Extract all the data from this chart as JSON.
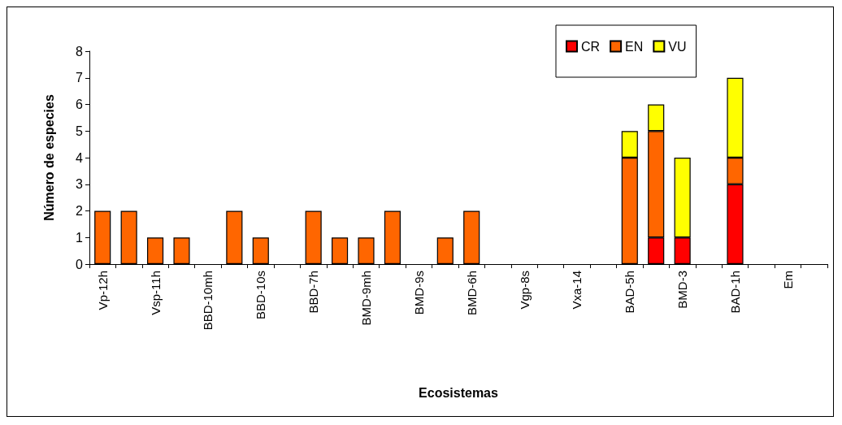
{
  "chart_data": {
    "type": "bar",
    "stacked": true,
    "xlabel": "Ecosistemas",
    "ylabel": "Número de especies",
    "categories": [
      "Vp-12h",
      null,
      "Vsp-11h",
      null,
      "BBD-10mh",
      null,
      "BBD-10s",
      null,
      "BBD-7h",
      null,
      "BMD-9mh",
      null,
      "BMD-9s",
      null,
      "BMD-6h",
      null,
      "Vgp-8s",
      null,
      "Vxa-14",
      null,
      "BAD-5h",
      null,
      "BMD-3",
      null,
      "BAD-1h",
      null,
      "Em",
      null
    ],
    "series": [
      {
        "name": "CR",
        "color": "#ff0000",
        "values": [
          0,
          0,
          0,
          0,
          0,
          0,
          0,
          0,
          0,
          0,
          0,
          0,
          0,
          0,
          0,
          0,
          0,
          0,
          0,
          0,
          0,
          1,
          1,
          0,
          3,
          0,
          0,
          0
        ]
      },
      {
        "name": "EN",
        "color": "#ff6600",
        "values": [
          2,
          2,
          1,
          1,
          0,
          2,
          1,
          0,
          2,
          1,
          1,
          2,
          0,
          1,
          2,
          0,
          0,
          0,
          0,
          0,
          4,
          4,
          0,
          0,
          1,
          0,
          0,
          0
        ]
      },
      {
        "name": "VU",
        "color": "#ffff00",
        "values": [
          0,
          0,
          0,
          0,
          0,
          0,
          0,
          0,
          0,
          0,
          0,
          0,
          0,
          0,
          0,
          0,
          0,
          0,
          0,
          0,
          1,
          1,
          3,
          0,
          3,
          0,
          0,
          0
        ]
      }
    ],
    "ylim": [
      0,
      8
    ],
    "yticks": [
      0,
      1,
      2,
      3,
      4,
      5,
      6,
      7,
      8
    ],
    "grid": false,
    "legend": "top right"
  }
}
